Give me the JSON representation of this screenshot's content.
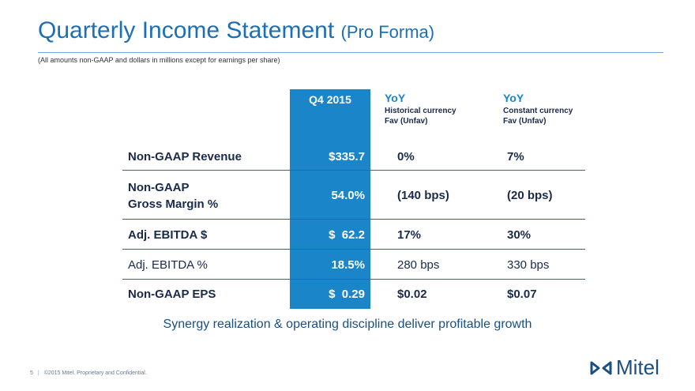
{
  "title": "Quarterly Income Statement",
  "title_paren": "(Pro Forma)",
  "subtitle": "(All amounts non-GAAP and dollars in millions except for earnings per share)",
  "columns": {
    "q4": "Q4 2015",
    "yoy1": "YoY",
    "yoy1_sub1": "Historical currency",
    "yoy1_sub2": "Fav (Unfav)",
    "yoy2": "YoY",
    "yoy2_sub1": "Constant currency",
    "yoy2_sub2": "Fav (Unfav)"
  },
  "rows": [
    {
      "label": "Non-GAAP Revenue",
      "q4": "$335.7",
      "c1": "0%",
      "c2": "7%"
    },
    {
      "label1": "Non-GAAP",
      "label2": "Gross Margin %",
      "q4": "54.0%",
      "c1": "(140 bps)",
      "c2": "(20 bps)"
    },
    {
      "label": "Adj. EBITDA $",
      "q4": "$  62.2",
      "c1": "17%",
      "c2": "30%"
    },
    {
      "label": "Adj. EBITDA %",
      "q4": "18.5%",
      "c1": "280 bps",
      "c2": "330 bps"
    },
    {
      "label": "Non-GAAP EPS",
      "q4": "$  0.29",
      "c1": "$0.02",
      "c2": "$0.07"
    }
  ],
  "tagline": "Synergy realization & operating discipline deliver profitable growth",
  "footer": {
    "page": "5",
    "text": "©2015 Mitel. Proprietary and Confidential."
  },
  "logo": {
    "text": "Mitel",
    "icon": "mitel-logo-icon"
  },
  "colors": {
    "accent": "#1a86c9",
    "title": "#1c6fb5",
    "text": "#1a2a4a"
  }
}
